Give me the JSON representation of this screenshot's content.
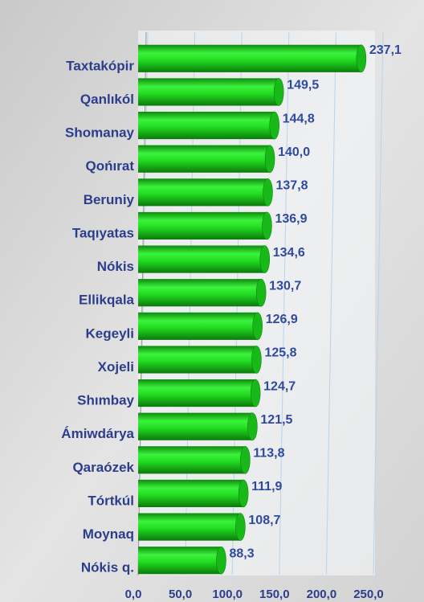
{
  "chart_data": {
    "type": "bar",
    "orientation": "horizontal",
    "categories": [
      "Taxtakópir",
      "Qanlıkól",
      "Shomanay",
      "Qońırat",
      "Beruniy",
      "Taqıyatas",
      "Nókis",
      "Ellikqala",
      "Kegeyli",
      "Xojeli",
      "Shımbay",
      "Ámiwdárya",
      "Qaraózek",
      "Tórtkúl",
      "Moynaq",
      "Nókis q."
    ],
    "values": [
      237.1,
      149.5,
      144.8,
      140.0,
      137.8,
      136.9,
      134.6,
      130.7,
      126.9,
      125.8,
      124.7,
      121.5,
      113.8,
      111.9,
      108.7,
      88.3
    ],
    "value_labels": [
      "237,1",
      "149,5",
      "144,8",
      "140,0",
      "137,8",
      "136,9",
      "134,6",
      "130,7",
      "126,9",
      "125,8",
      "124,7",
      "121,5",
      "113,8",
      "111,9",
      "108,7",
      "88,3"
    ],
    "color": "#22dd22",
    "xlim": [
      0,
      250
    ],
    "xticks": [
      {
        "value": 0,
        "label": "0,0"
      },
      {
        "value": 50,
        "label": "50,0"
      },
      {
        "value": 100,
        "label": "100,0"
      },
      {
        "value": 150,
        "label": "150,0"
      },
      {
        "value": 200,
        "label": "200,0"
      },
      {
        "value": 250,
        "label": "250,0"
      }
    ],
    "grid": true
  }
}
